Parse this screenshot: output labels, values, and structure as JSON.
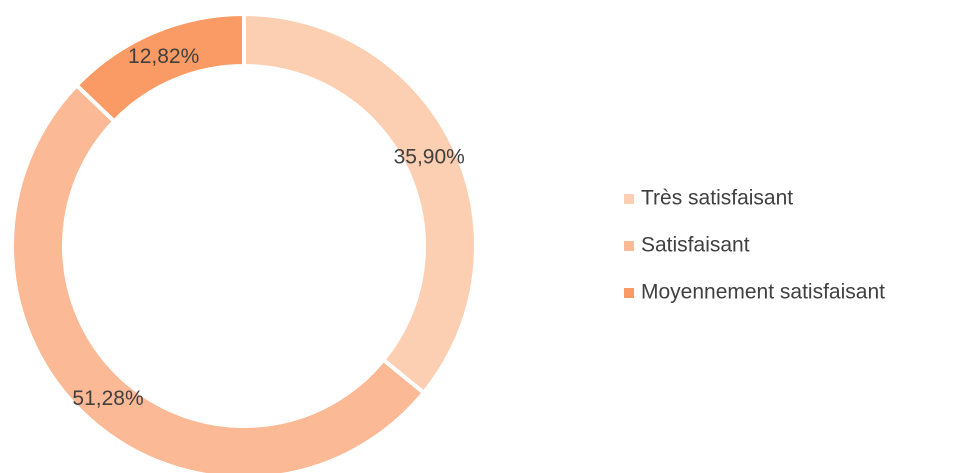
{
  "chart_data": {
    "type": "donut",
    "categories": [
      "Très satisfaisant",
      "Satisfaisant",
      "Moyennement satisfaisant"
    ],
    "values": [
      35.9,
      51.28,
      12.82
    ],
    "value_labels": [
      "35,90%",
      "51,28%",
      "12,82%"
    ],
    "colors": [
      "#fdcfb2",
      "#fcb995",
      "#fa9a64"
    ],
    "legend": "right"
  }
}
